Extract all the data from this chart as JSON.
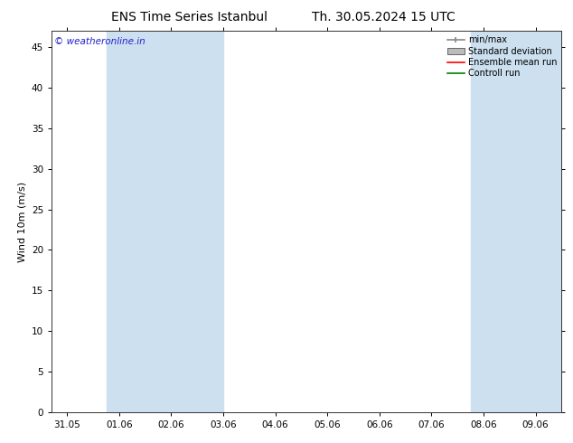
{
  "title": "ENS Time Series Istanbul",
  "title2": "Th. 30.05.2024 15 UTC",
  "ylabel": "Wind 10m (m/s)",
  "watermark": "© weatheronline.in",
  "watermark_color": "#2222cc",
  "ylim": [
    0,
    47
  ],
  "yticks": [
    0,
    5,
    10,
    15,
    20,
    25,
    30,
    35,
    40,
    45
  ],
  "xtick_labels": [
    "31.05",
    "01.06",
    "02.06",
    "03.06",
    "04.06",
    "05.06",
    "06.06",
    "07.06",
    "08.06",
    "09.06"
  ],
  "xtick_positions": [
    0,
    1,
    2,
    3,
    4,
    5,
    6,
    7,
    8,
    9
  ],
  "n_ticks": 10,
  "xlim": [
    -0.3,
    9.5
  ],
  "shaded_bands": [
    [
      0.75,
      2.0
    ],
    [
      2.0,
      3.0
    ],
    [
      7.75,
      8.75
    ],
    [
      8.75,
      9.5
    ]
  ],
  "shade_color": "#cce0f0",
  "background_color": "#ffffff",
  "plot_bg_color": "#ffffff",
  "legend_items": [
    "min/max",
    "Standard deviation",
    "Ensemble mean run",
    "Controll run"
  ],
  "legend_colors": [
    "#888888",
    "#bbbbbb",
    "#ff0000",
    "#008000"
  ],
  "title_fontsize": 10,
  "tick_fontsize": 7.5,
  "ylabel_fontsize": 8,
  "watermark_fontsize": 7.5
}
